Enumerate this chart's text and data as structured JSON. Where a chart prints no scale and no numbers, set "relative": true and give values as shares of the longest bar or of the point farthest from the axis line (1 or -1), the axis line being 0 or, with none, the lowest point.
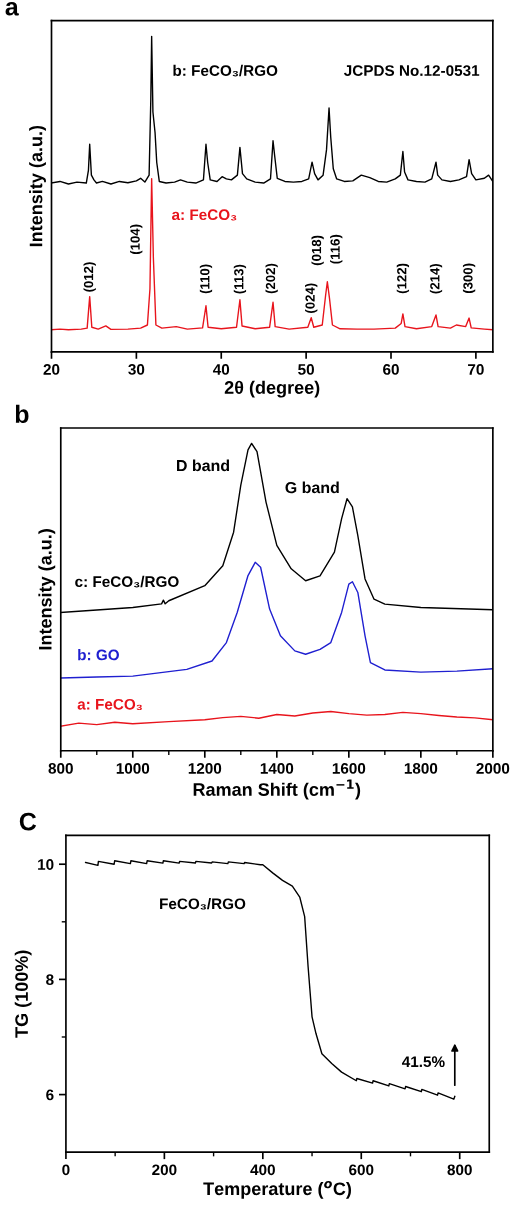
{
  "chart_data": [
    {
      "type": "line",
      "title": "a",
      "xlabel": "2θ (degree)",
      "ylabel": "Intensity (a.u.)",
      "relative": true,
      "tick_labels": "x",
      "xlim": [
        20,
        72
      ],
      "xticks": [
        20,
        30,
        40,
        50,
        60,
        70
      ],
      "series": [
        {
          "name": "b: FeCO₃/RGO",
          "color": "#000000",
          "x": [
            20.0,
            21,
            22,
            23,
            24.1,
            24.35,
            24.5,
            24.7,
            25.0,
            25.3,
            26,
            27,
            28,
            29,
            30,
            30.5,
            31.0,
            31.5,
            31.7,
            31.8,
            31.95,
            32.2,
            32.4,
            32.7,
            33.5,
            34.5,
            35.2,
            36,
            37,
            37.9,
            38.2,
            38.4,
            38.7,
            39.5,
            40.1,
            40.6,
            41.2,
            41.9,
            42.2,
            42.5,
            43,
            44,
            45,
            45.8,
            46.1,
            46.3,
            46.6,
            47.5,
            48.5,
            49.5,
            50.3,
            50.7,
            51.0,
            51.4,
            52.0,
            52.4,
            52.7,
            52.9,
            53.2,
            53.6,
            54.5,
            55.5,
            56.5,
            57.5,
            58.5,
            59.5,
            60.5,
            61.1,
            61.4,
            61.6,
            62,
            63,
            64,
            64.8,
            65.3,
            65.5,
            66,
            67,
            68,
            68.9,
            69.2,
            69.5,
            70,
            71,
            71.5,
            72
          ],
          "values": [
            0.535,
            0.54,
            0.532,
            0.538,
            0.535,
            0.575,
            0.658,
            0.56,
            0.545,
            0.535,
            0.54,
            0.532,
            0.54,
            0.536,
            0.542,
            0.55,
            0.538,
            0.56,
            0.8,
            1.0,
            0.76,
            0.695,
            0.6,
            0.54,
            0.535,
            0.538,
            0.545,
            0.538,
            0.535,
            0.545,
            0.658,
            0.6,
            0.545,
            0.54,
            0.555,
            0.548,
            0.545,
            0.56,
            0.648,
            0.565,
            0.548,
            0.538,
            0.535,
            0.548,
            0.669,
            0.62,
            0.55,
            0.54,
            0.538,
            0.54,
            0.548,
            0.601,
            0.565,
            0.545,
            0.56,
            0.64,
            0.773,
            0.68,
            0.58,
            0.548,
            0.54,
            0.542,
            0.56,
            0.552,
            0.54,
            0.538,
            0.548,
            0.56,
            0.635,
            0.57,
            0.545,
            0.54,
            0.538,
            0.548,
            0.601,
            0.56,
            0.545,
            0.54,
            0.545,
            0.555,
            0.609,
            0.565,
            0.545,
            0.55,
            0.56,
            0.54
          ]
        },
        {
          "name": "a: FeCO₃",
          "color": "#e8141c",
          "x": [
            20,
            21,
            22,
            23.5,
            24.2,
            24.5,
            24.75,
            25.5,
            26.4,
            27,
            29,
            30.5,
            31.3,
            31.6,
            31.8,
            32.0,
            32.3,
            33,
            34.7,
            36,
            37.8,
            38.2,
            38.45,
            40,
            41.8,
            42.2,
            42.45,
            44,
            45.7,
            46.1,
            46.35,
            48,
            50.2,
            50.6,
            50.9,
            51.9,
            52.3,
            52.5,
            52.75,
            53.1,
            54,
            56,
            58,
            60.5,
            61.2,
            61.4,
            61.65,
            63,
            64.8,
            65.3,
            65.55,
            67,
            67.7,
            68.8,
            69.2,
            69.45,
            71,
            72
          ],
          "values": [
            0.07,
            0.072,
            0.07,
            0.072,
            0.075,
            0.175,
            0.078,
            0.072,
            0.082,
            0.071,
            0.072,
            0.075,
            0.085,
            0.2,
            0.549,
            0.3,
            0.085,
            0.075,
            0.08,
            0.072,
            0.076,
            0.146,
            0.078,
            0.073,
            0.078,
            0.165,
            0.082,
            0.073,
            0.078,
            0.157,
            0.08,
            0.072,
            0.078,
            0.108,
            0.078,
            0.085,
            0.18,
            0.222,
            0.17,
            0.085,
            0.073,
            0.072,
            0.072,
            0.075,
            0.09,
            0.12,
            0.08,
            0.073,
            0.08,
            0.117,
            0.08,
            0.075,
            0.085,
            0.08,
            0.107,
            0.076,
            0.072,
            0.07
          ]
        }
      ],
      "annotations": [
        {
          "text": "(012)",
          "x": 24.5,
          "y": 0.175
        },
        "(104)",
        {
          "text": "(110)",
          "x": 38.2,
          "y": 0.146
        },
        {
          "text": "(113)",
          "x": 42.2,
          "y": 0.165
        },
        {
          "text": "(202)",
          "x": 46.1,
          "y": 0.157
        },
        {
          "text": "(024)",
          "x": 50.6,
          "y": 0.108
        },
        {
          "text": "(018)",
          "x": 52.5,
          "y": 0.222
        },
        {
          "text": "(116)",
          "x": 52.5,
          "y": 0.222
        },
        {
          "text": "(122)",
          "x": 61.4,
          "y": 0.12
        },
        {
          "text": "(214)",
          "x": 65.3,
          "y": 0.117
        },
        {
          "text": "(300)",
          "x": 69.2,
          "y": 0.107
        },
        "JCPDS No.12-0531"
      ]
    },
    {
      "type": "line",
      "title": "b",
      "xlabel": "Raman Shift (cm$^{−1}$)",
      "ylabel": "Intensity (a.u.)",
      "relative": true,
      "tick_labels": "x",
      "xlim": [
        800,
        2000
      ],
      "xticks": [
        800,
        {
          "value": 900,
          "label": null
        },
        1000,
        {
          "value": 1100,
          "label": null
        },
        1200,
        {
          "value": 1300,
          "label": null
        },
        1400,
        {
          "value": 1500,
          "label": null
        },
        1600,
        {
          "value": 1700,
          "label": null
        },
        1800,
        {
          "value": 1900,
          "label": null
        },
        2000
      ],
      "series": [
        {
          "name": "c: FeCO₃/RGO",
          "color": "#000000",
          "x": [
            800,
            900,
            1000,
            1080,
            1085,
            1090,
            1100,
            1200,
            1250,
            1280,
            1300,
            1320,
            1330,
            1345,
            1370,
            1400,
            1440,
            1480,
            1520,
            1560,
            1580,
            1595,
            1610,
            1625,
            1645,
            1670,
            1700,
            1800,
            2000
          ],
          "values": [
            0.45,
            0.458,
            0.466,
            0.478,
            0.49,
            0.478,
            0.488,
            0.537,
            0.602,
            0.711,
            0.864,
            0.979,
            1.0,
            0.973,
            0.809,
            0.668,
            0.592,
            0.553,
            0.569,
            0.646,
            0.755,
            0.82,
            0.793,
            0.7,
            0.559,
            0.493,
            0.477,
            0.466,
            0.459
          ]
        },
        {
          "name": "b: GO",
          "color": "#1f1fd0",
          "x": [
            800,
            900,
            1000,
            1150,
            1220,
            1260,
            1290,
            1320,
            1340,
            1355,
            1380,
            1410,
            1450,
            1480,
            1520,
            1550,
            1580,
            1600,
            1610,
            1625,
            1645,
            1660,
            1700,
            1800,
            1900,
            2000
          ],
          "values": [
            0.237,
            0.24,
            0.243,
            0.265,
            0.292,
            0.352,
            0.45,
            0.57,
            0.613,
            0.597,
            0.461,
            0.374,
            0.325,
            0.314,
            0.33,
            0.352,
            0.45,
            0.542,
            0.55,
            0.515,
            0.374,
            0.287,
            0.263,
            0.256,
            0.259,
            0.267
          ]
        },
        {
          "name": "a: FeCO₃",
          "color": "#e8141c",
          "x": [
            800,
            850,
            900,
            950,
            1000,
            1100,
            1200,
            1250,
            1300,
            1350,
            1400,
            1450,
            1500,
            1550,
            1600,
            1650,
            1700,
            1750,
            1800,
            1850,
            1900,
            1950,
            2000
          ],
          "values": [
            0.08,
            0.09,
            0.085,
            0.093,
            0.088,
            0.095,
            0.101,
            0.108,
            0.112,
            0.106,
            0.118,
            0.113,
            0.123,
            0.128,
            0.121,
            0.116,
            0.118,
            0.125,
            0.121,
            0.115,
            0.11,
            0.107,
            0.101
          ]
        }
      ],
      "annotations": [
        {
          "text": "D band",
          "x": 1330,
          "y": 1.0
        },
        {
          "text": "G band",
          "x": 1595,
          "y": 0.82
        }
      ]
    },
    {
      "type": "line",
      "title": "C",
      "xlabel": "Temperature ($^{o}$C)",
      "ylabel": "TG (100%)",
      "xlim": [
        0,
        860
      ],
      "ylim": [
        5,
        10.5
      ],
      "xticks": [
        0,
        {
          "value": 100,
          "label": null
        },
        200,
        {
          "value": 300,
          "label": null
        },
        400,
        {
          "value": 500,
          "label": null
        },
        600,
        {
          "value": 700,
          "label": null
        },
        800
      ],
      "yticks": [
        6,
        {
          "value": 7,
          "label": null
        },
        8,
        {
          "value": 9,
          "label": null
        },
        10
      ],
      "series": [
        {
          "color": "#000000",
          "x": [
            40,
            65,
            66,
            98,
            99,
            131,
            132,
            164,
            165,
            197,
            198,
            230,
            231,
            263,
            264,
            296,
            297,
            329,
            330,
            362,
            363,
            395,
            400,
            420,
            440,
            460,
            475,
            485,
            492,
            500,
            508,
            520,
            540,
            560,
            590,
            591,
            623,
            624,
            656,
            657,
            689,
            690,
            722,
            723,
            755,
            756,
            788,
            790
          ],
          "values": [
            10.03,
            9.98,
            10.05,
            10.0,
            10.06,
            10.01,
            10.06,
            10.01,
            10.06,
            10.02,
            10.06,
            10.02,
            10.05,
            10.02,
            10.05,
            10.02,
            10.04,
            10.01,
            10.04,
            10.01,
            10.03,
            9.99,
            9.99,
            9.85,
            9.72,
            9.62,
            9.43,
            9.09,
            8.22,
            7.35,
            7.06,
            6.71,
            6.54,
            6.39,
            6.24,
            6.28,
            6.2,
            6.24,
            6.15,
            6.19,
            6.1,
            6.14,
            6.05,
            6.09,
            5.99,
            6.03,
            5.92,
            5.97
          ]
        }
      ],
      "annotations": [
        "FeCO₃/RGO",
        {
          "text": "41.5%",
          "x": 790,
          "y": 5.97
        }
      ]
    }
  ]
}
